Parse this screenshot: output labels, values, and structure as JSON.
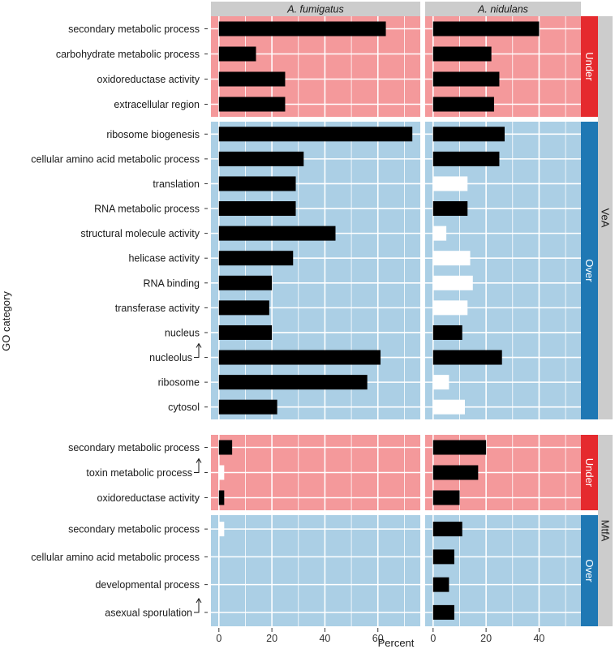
{
  "chart_data": {
    "type": "bar",
    "orientation": "horizontal",
    "xlabel": "Percent",
    "ylabel": "GO category",
    "x_ticks": [
      0,
      20,
      40,
      60
    ],
    "xlim": [
      -3,
      76
    ],
    "facets": [
      "A. fumigatus",
      "A. nidulans"
    ],
    "colors": {
      "under_bg": "#f4999b",
      "over_bg": "#abcfe5",
      "under_strip": "#e52a2e",
      "over_strip": "#1f78b4",
      "strip_grey": "#cccccc",
      "bar_filled": "#000000",
      "bar_open": "#ffffff",
      "grid": "#ffffff"
    },
    "panels": [
      {
        "group": "VeA",
        "direction": "Under",
        "rows": [
          {
            "label": "secondary metabolic process",
            "arrow": false,
            "values": [
              63,
              40
            ],
            "filled": [
              true,
              true
            ]
          },
          {
            "label": "carbohydrate metabolic process",
            "arrow": false,
            "values": [
              14,
              22
            ],
            "filled": [
              true,
              true
            ]
          },
          {
            "label": "oxidoreductase activity",
            "arrow": false,
            "values": [
              25,
              25
            ],
            "filled": [
              true,
              true
            ]
          },
          {
            "label": "extracellular region",
            "arrow": false,
            "values": [
              25,
              23
            ],
            "filled": [
              true,
              true
            ]
          }
        ]
      },
      {
        "group": "VeA",
        "direction": "Over",
        "rows": [
          {
            "label": "ribosome biogenesis",
            "arrow": false,
            "values": [
              73,
              27
            ],
            "filled": [
              true,
              true
            ]
          },
          {
            "label": "cellular amino acid metabolic process",
            "arrow": false,
            "values": [
              32,
              25
            ],
            "filled": [
              true,
              true
            ]
          },
          {
            "label": "translation",
            "arrow": false,
            "values": [
              29,
              13
            ],
            "filled": [
              true,
              false
            ]
          },
          {
            "label": "RNA metabolic process",
            "arrow": false,
            "values": [
              29,
              13
            ],
            "filled": [
              true,
              true
            ]
          },
          {
            "label": "structural molecule activity",
            "arrow": false,
            "values": [
              44,
              5
            ],
            "filled": [
              true,
              false
            ]
          },
          {
            "label": "helicase activity",
            "arrow": false,
            "values": [
              28,
              14
            ],
            "filled": [
              true,
              false
            ]
          },
          {
            "label": "RNA binding",
            "arrow": false,
            "values": [
              20,
              15
            ],
            "filled": [
              true,
              false
            ]
          },
          {
            "label": "transferase activity",
            "arrow": false,
            "values": [
              19,
              13
            ],
            "filled": [
              true,
              false
            ]
          },
          {
            "label": "nucleus",
            "arrow": false,
            "values": [
              20,
              11
            ],
            "filled": [
              true,
              true
            ]
          },
          {
            "label": "nucleolus",
            "arrow": true,
            "values": [
              61,
              26
            ],
            "filled": [
              true,
              true
            ]
          },
          {
            "label": "ribosome",
            "arrow": false,
            "values": [
              56,
              6
            ],
            "filled": [
              true,
              false
            ]
          },
          {
            "label": "cytosol",
            "arrow": false,
            "values": [
              22,
              12
            ],
            "filled": [
              true,
              false
            ]
          }
        ]
      },
      {
        "group": "MtfA",
        "direction": "Under",
        "rows": [
          {
            "label": "secondary metabolic process",
            "arrow": false,
            "values": [
              5,
              20
            ],
            "filled": [
              true,
              true
            ]
          },
          {
            "label": "toxin metabolic process",
            "arrow": true,
            "values": [
              2,
              17
            ],
            "filled": [
              false,
              true
            ]
          },
          {
            "label": "oxidoreductase activity",
            "arrow": false,
            "values": [
              2,
              10
            ],
            "filled": [
              true,
              true
            ]
          }
        ]
      },
      {
        "group": "MtfA",
        "direction": "Over",
        "rows": [
          {
            "label": "secondary metabolic process",
            "arrow": false,
            "values": [
              2,
              11
            ],
            "filled": [
              false,
              true
            ]
          },
          {
            "label": "cellular amino acid metabolic process",
            "arrow": false,
            "values": [
              0,
              8
            ],
            "filled": [
              true,
              true
            ]
          },
          {
            "label": "developmental process",
            "arrow": false,
            "values": [
              0,
              6
            ],
            "filled": [
              true,
              true
            ]
          },
          {
            "label": "asexual sporulation",
            "arrow": true,
            "values": [
              0,
              8
            ],
            "filled": [
              true,
              true
            ]
          }
        ]
      }
    ],
    "groups": [
      "VeA",
      "MtfA"
    ]
  }
}
